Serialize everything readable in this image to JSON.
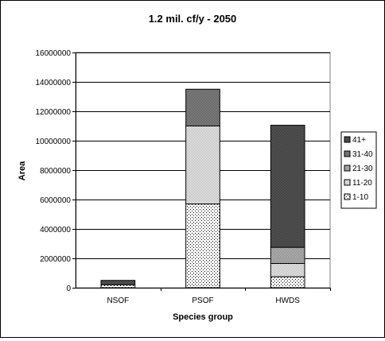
{
  "chart_data": {
    "type": "bar",
    "stacked": true,
    "title": "1.2 mil. cf/y - 2050",
    "xlabel": "Species group",
    "ylabel": "Area",
    "ylim": [
      0,
      16000000
    ],
    "yticks": [
      0,
      2000000,
      4000000,
      6000000,
      8000000,
      10000000,
      12000000,
      14000000,
      16000000
    ],
    "ytick_labels": [
      "0",
      "2000000",
      "4000000",
      "6000000",
      "8000000",
      "10000000",
      "12000000",
      "14000000",
      "16000000"
    ],
    "categories": [
      "NSOF",
      "PSOF",
      "HWDS"
    ],
    "grid": true,
    "legend_position": "right",
    "series": [
      {
        "name": "1-10",
        "values": [
          200000,
          5700000,
          750000
        ]
      },
      {
        "name": "11-20",
        "values": [
          0,
          5300000,
          900000
        ]
      },
      {
        "name": "21-30",
        "values": [
          0,
          0,
          1100000
        ]
      },
      {
        "name": "31-40",
        "values": [
          0,
          2500000,
          0
        ]
      },
      {
        "name": "41+",
        "values": [
          300000,
          0,
          8300000
        ]
      }
    ],
    "legend_order": [
      "41+",
      "31-40",
      "21-30",
      "11-20",
      "1-10"
    ]
  }
}
